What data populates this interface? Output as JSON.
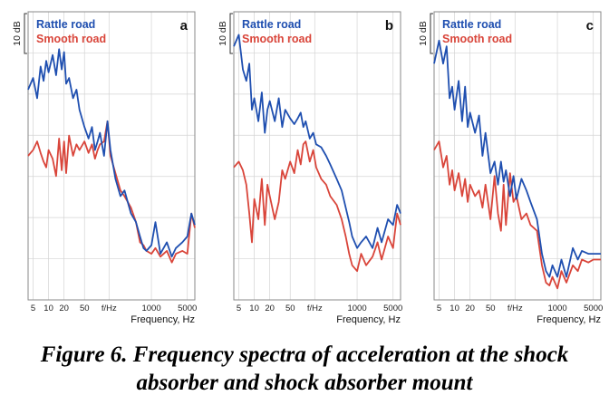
{
  "colors": {
    "rattle": "#1f4fb0",
    "smooth": "#d9453a",
    "grid": "#d4d4d4",
    "frame": "#8a8a8a"
  },
  "chart_data": [
    {
      "type": "line",
      "panel_label": "a",
      "scale_label": "10 dB",
      "xlabel": "Frequency, Hz",
      "xscale": "log",
      "xlim": [
        4,
        7000
      ],
      "ylim": [
        0,
        100
      ],
      "xticks": [
        {
          "v": 5,
          "label": "5"
        },
        {
          "v": 10,
          "label": "10"
        },
        {
          "v": 20,
          "label": "20"
        },
        {
          "v": 50,
          "label": "50"
        },
        {
          "v": 150,
          "label": "f/Hz"
        },
        {
          "v": 1000,
          "label": "1000"
        },
        {
          "v": 5000,
          "label": "5000"
        }
      ],
      "legend": [
        "Rattle road",
        "Smooth road"
      ],
      "series": [
        {
          "name": "Rattle road",
          "x": [
            4,
            5,
            6,
            7,
            8,
            9,
            10,
            12,
            14,
            16,
            18,
            20,
            22,
            25,
            30,
            35,
            40,
            50,
            60,
            70,
            80,
            90,
            100,
            120,
            140,
            160,
            200,
            250,
            300,
            400,
            500,
            600,
            700,
            800,
            1000,
            1200,
            1500,
            2000,
            2500,
            3000,
            4000,
            5000,
            6000,
            7000
          ],
          "y": [
            73,
            77,
            70,
            81,
            76,
            83,
            79,
            85,
            78,
            87,
            80,
            86,
            75,
            77,
            70,
            73,
            66,
            60,
            56,
            60,
            52,
            55,
            58,
            50,
            62,
            52,
            42,
            36,
            38,
            30,
            27,
            22,
            18,
            17,
            19,
            27,
            16,
            20,
            15,
            18,
            20,
            22,
            30,
            26
          ]
        },
        {
          "name": "Smooth road",
          "x": [
            4,
            5,
            6,
            7,
            8,
            9,
            10,
            12,
            14,
            16,
            18,
            20,
            22,
            25,
            30,
            35,
            40,
            50,
            60,
            70,
            80,
            90,
            100,
            120,
            140,
            160,
            200,
            250,
            300,
            400,
            500,
            600,
            700,
            800,
            1000,
            1200,
            1500,
            2000,
            2500,
            3000,
            4000,
            5000,
            6000,
            7000
          ],
          "y": [
            50,
            52,
            55,
            51,
            48,
            46,
            52,
            49,
            43,
            56,
            45,
            55,
            44,
            57,
            50,
            54,
            52,
            55,
            51,
            54,
            49,
            52,
            54,
            55,
            62,
            50,
            44,
            38,
            36,
            32,
            27,
            20,
            19,
            17,
            16,
            18,
            15,
            17,
            13,
            16,
            17,
            16,
            30,
            25
          ]
        }
      ]
    },
    {
      "type": "line",
      "panel_label": "b",
      "scale_label": "10 dB",
      "xlabel": "Frequency, Hz",
      "xscale": "log",
      "xlim": [
        4,
        7000
      ],
      "ylim": [
        0,
        100
      ],
      "xticks": [
        {
          "v": 5,
          "label": "5"
        },
        {
          "v": 10,
          "label": "10"
        },
        {
          "v": 20,
          "label": "20"
        },
        {
          "v": 50,
          "label": "50"
        },
        {
          "v": 150,
          "label": "f/Hz"
        },
        {
          "v": 1000,
          "label": "1000"
        },
        {
          "v": 5000,
          "label": "5000"
        }
      ],
      "legend": [
        "Rattle road",
        "Smooth road"
      ],
      "series": [
        {
          "name": "Rattle road",
          "x": [
            4,
            5,
            6,
            7,
            8,
            9,
            10,
            12,
            14,
            16,
            18,
            20,
            25,
            30,
            35,
            40,
            50,
            60,
            70,
            80,
            90,
            100,
            120,
            140,
            160,
            200,
            250,
            300,
            400,
            500,
            600,
            700,
            800,
            1000,
            1200,
            1500,
            2000,
            2500,
            3000,
            4000,
            5000,
            6000,
            7000
          ],
          "y": [
            88,
            92,
            80,
            76,
            82,
            66,
            70,
            62,
            72,
            58,
            66,
            69,
            62,
            70,
            60,
            66,
            63,
            61,
            63,
            65,
            60,
            62,
            56,
            58,
            54,
            53,
            50,
            47,
            42,
            38,
            32,
            27,
            22,
            18,
            20,
            22,
            18,
            25,
            20,
            28,
            26,
            33,
            30
          ]
        },
        {
          "name": "Smooth road",
          "x": [
            4,
            5,
            6,
            7,
            8,
            9,
            10,
            12,
            14,
            16,
            18,
            20,
            25,
            30,
            35,
            40,
            50,
            60,
            70,
            80,
            90,
            100,
            120,
            140,
            160,
            200,
            250,
            300,
            400,
            500,
            600,
            700,
            800,
            1000,
            1200,
            1500,
            2000,
            2500,
            3000,
            4000,
            5000,
            6000,
            7000
          ],
          "y": [
            46,
            48,
            45,
            40,
            30,
            20,
            35,
            28,
            42,
            26,
            40,
            36,
            28,
            34,
            45,
            42,
            48,
            44,
            52,
            47,
            54,
            55,
            48,
            52,
            46,
            42,
            40,
            36,
            33,
            28,
            22,
            16,
            12,
            10,
            16,
            12,
            15,
            20,
            14,
            22,
            18,
            30,
            26
          ]
        }
      ]
    },
    {
      "type": "line",
      "panel_label": "c",
      "scale_label": "10 dB",
      "xlabel": "Frequency, Hz",
      "xscale": "log",
      "xlim": [
        4,
        7000
      ],
      "ylim": [
        0,
        100
      ],
      "xticks": [
        {
          "v": 5,
          "label": "5"
        },
        {
          "v": 10,
          "label": "10"
        },
        {
          "v": 20,
          "label": "20"
        },
        {
          "v": 50,
          "label": "50"
        },
        {
          "v": 150,
          "label": "f/Hz"
        },
        {
          "v": 1000,
          "label": "1000"
        },
        {
          "v": 5000,
          "label": "5000"
        }
      ],
      "legend": [
        "Rattle road",
        "Smooth road"
      ],
      "series": [
        {
          "name": "Rattle road",
          "x": [
            4,
            5,
            6,
            7,
            8,
            9,
            10,
            12,
            14,
            16,
            18,
            20,
            25,
            30,
            35,
            40,
            50,
            60,
            70,
            80,
            90,
            100,
            120,
            140,
            160,
            200,
            250,
            300,
            400,
            500,
            600,
            700,
            800,
            1000,
            1200,
            1500,
            2000,
            2500,
            3000,
            4000,
            5000,
            6000,
            7000
          ],
          "y": [
            82,
            90,
            82,
            88,
            70,
            74,
            66,
            76,
            62,
            74,
            60,
            65,
            58,
            64,
            50,
            58,
            44,
            48,
            40,
            48,
            41,
            45,
            36,
            43,
            35,
            42,
            38,
            34,
            28,
            16,
            10,
            8,
            12,
            8,
            14,
            8,
            18,
            14,
            17,
            16,
            16,
            16,
            16
          ]
        },
        {
          "name": "Smooth road",
          "x": [
            4,
            5,
            6,
            7,
            8,
            9,
            10,
            12,
            14,
            16,
            18,
            20,
            25,
            30,
            35,
            40,
            50,
            60,
            70,
            80,
            90,
            100,
            120,
            140,
            160,
            200,
            250,
            300,
            400,
            500,
            600,
            700,
            800,
            1000,
            1200,
            1500,
            2000,
            2500,
            3000,
            4000,
            5000,
            6000,
            7000
          ],
          "y": [
            52,
            55,
            46,
            50,
            40,
            45,
            38,
            44,
            36,
            42,
            34,
            40,
            36,
            38,
            32,
            40,
            28,
            43,
            30,
            24,
            40,
            26,
            44,
            34,
            36,
            28,
            30,
            26,
            24,
            12,
            6,
            5,
            8,
            4,
            10,
            6,
            12,
            10,
            14,
            13,
            14,
            14,
            14
          ]
        }
      ]
    }
  ],
  "caption": {
    "line1": "Figure 6. Frequency spectra of acceleration at the shock",
    "line2": "absorber and shock absorber mount"
  }
}
